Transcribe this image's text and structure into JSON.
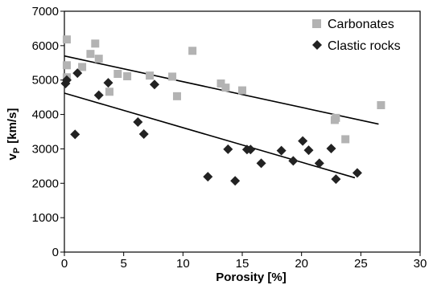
{
  "chart_data": {
    "type": "scatter",
    "xlabel": "Porosity [%]",
    "ylabel_main": "v",
    "ylabel_sub": "P",
    "ylabel_unit": "[km/s]",
    "xlim": [
      0,
      30
    ],
    "ylim": [
      0,
      7000
    ],
    "xticks": [
      0,
      5,
      10,
      15,
      20,
      25,
      30
    ],
    "yticks": [
      0,
      1000,
      2000,
      3000,
      4000,
      5000,
      6000,
      7000
    ],
    "grid": false,
    "legend_position": "top-right",
    "series": [
      {
        "name": "Carbonates",
        "marker": "square",
        "color": "#b3b3b3",
        "points": [
          [
            0.2,
            6180
          ],
          [
            0.2,
            5430
          ],
          [
            0.2,
            5080
          ],
          [
            1.5,
            5380
          ],
          [
            2.2,
            5760
          ],
          [
            2.6,
            6060
          ],
          [
            2.9,
            5620
          ],
          [
            3.8,
            4660
          ],
          [
            4.5,
            5180
          ],
          [
            5.3,
            5110
          ],
          [
            7.2,
            5130
          ],
          [
            9.1,
            5100
          ],
          [
            9.5,
            4530
          ],
          [
            10.8,
            5850
          ],
          [
            13.2,
            4900
          ],
          [
            13.6,
            4780
          ],
          [
            15.0,
            4700
          ],
          [
            22.8,
            3840
          ],
          [
            22.9,
            3900
          ],
          [
            23.7,
            3280
          ],
          [
            26.7,
            4270
          ]
        ],
        "trend": [
          [
            0,
            5700
          ],
          [
            26.5,
            3720
          ]
        ]
      },
      {
        "name": "Clastic rocks",
        "marker": "diamond",
        "color": "#222222",
        "points": [
          [
            0.1,
            4900
          ],
          [
            0.2,
            5000
          ],
          [
            0.9,
            3420
          ],
          [
            1.1,
            5200
          ],
          [
            2.9,
            4560
          ],
          [
            3.7,
            4920
          ],
          [
            6.2,
            3780
          ],
          [
            6.7,
            3430
          ],
          [
            7.6,
            4870
          ],
          [
            12.1,
            2190
          ],
          [
            13.8,
            2990
          ],
          [
            14.4,
            2070
          ],
          [
            15.4,
            2980
          ],
          [
            15.7,
            2980
          ],
          [
            16.6,
            2580
          ],
          [
            18.3,
            2950
          ],
          [
            19.3,
            2650
          ],
          [
            20.1,
            3230
          ],
          [
            20.6,
            2960
          ],
          [
            21.5,
            2580
          ],
          [
            22.5,
            3010
          ],
          [
            22.9,
            2120
          ],
          [
            24.7,
            2300
          ]
        ],
        "trend": [
          [
            0,
            4620
          ],
          [
            24.5,
            2160
          ]
        ]
      }
    ]
  }
}
